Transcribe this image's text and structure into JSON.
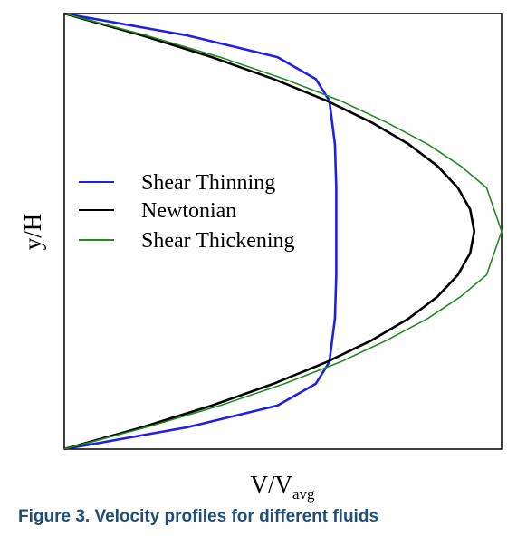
{
  "chart_data": {
    "type": "line",
    "title": "",
    "xlabel": "V/V",
    "xlabel_sub": "avg",
    "ylabel": "y/H",
    "xlim": [
      0,
      1.6
    ],
    "ylim": [
      0,
      1
    ],
    "grid": false,
    "legend_position": "left-center",
    "series": [
      {
        "name": "Shear Thinning",
        "color": "#1f1fe6",
        "x": [
          0,
          0.45,
          0.78,
          0.92,
          0.97,
          0.99,
          0.995,
          0.995,
          0.99,
          0.97,
          0.92,
          0.78,
          0.45,
          0
        ],
        "y": [
          0,
          0.05,
          0.1,
          0.15,
          0.2,
          0.3,
          0.4,
          0.6,
          0.7,
          0.8,
          0.85,
          0.9,
          0.95,
          1
        ]
      },
      {
        "name": "Newtonian",
        "color": "#000000",
        "x": [
          0,
          0.285,
          0.54,
          0.765,
          0.96,
          1.125,
          1.26,
          1.365,
          1.44,
          1.485,
          1.5,
          1.485,
          1.44,
          1.365,
          1.26,
          1.125,
          0.96,
          0.765,
          0.54,
          0.285,
          0
        ],
        "y": [
          0,
          0.05,
          0.1,
          0.15,
          0.2,
          0.25,
          0.3,
          0.35,
          0.4,
          0.45,
          0.5,
          0.55,
          0.6,
          0.65,
          0.7,
          0.75,
          0.8,
          0.85,
          0.9,
          0.95,
          1
        ]
      },
      {
        "name": "Shear Thickening",
        "color": "#228b22",
        "x": [
          0,
          0.3,
          0.57,
          0.805,
          1.01,
          1.18,
          1.33,
          1.45,
          1.545,
          1.6,
          1.545,
          1.45,
          1.33,
          1.18,
          1.01,
          0.805,
          0.57,
          0.3,
          0
        ],
        "y": [
          0,
          0.05,
          0.1,
          0.15,
          0.2,
          0.25,
          0.3,
          0.35,
          0.4,
          0.5,
          0.6,
          0.65,
          0.7,
          0.75,
          0.8,
          0.85,
          0.9,
          0.95,
          1
        ]
      }
    ]
  },
  "caption": "Figure 3. Velocity profiles for different fluids"
}
